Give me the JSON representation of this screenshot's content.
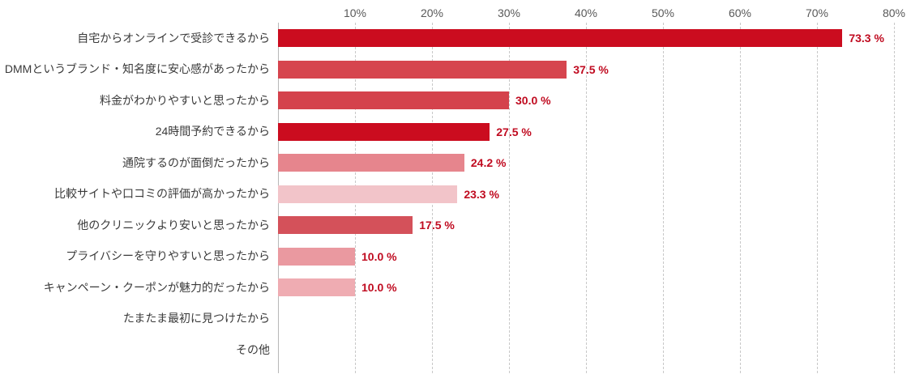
{
  "chart_data": {
    "type": "bar",
    "orientation": "horizontal",
    "title": "",
    "xlabel": "",
    "ylabel": "",
    "xlim": [
      0,
      80
    ],
    "grid": "vertical-dashed",
    "x_ticks": [
      "10%",
      "20%",
      "30%",
      "40%",
      "50%",
      "60%",
      "70%",
      "80%"
    ],
    "categories": [
      "自宅からオンラインで受診できるから",
      "DMMというブランド・知名度に安心感があったから",
      "料金がわかりやすいと思ったから",
      "24時間予約できるから",
      "通院するのが面倒だったから",
      "比較サイトや口コミの評価が高かったから",
      "他のクリニックより安いと思ったから",
      "プライバシーを守りやすいと思ったから",
      "キャンペーン・クーポンが魅力的だったから",
      "たまたま最初に見つけたから",
      "その他"
    ],
    "values": [
      73.3,
      37.5,
      30.0,
      27.5,
      24.2,
      23.3,
      17.5,
      10.0,
      10.0,
      null,
      null
    ],
    "value_labels": [
      "73.3 %",
      "37.5 %",
      "30.0 %",
      "27.5 %",
      "24.2 %",
      "23.3 %",
      "17.5 %",
      "10.0 %",
      "10.0 %",
      "",
      ""
    ],
    "bar_colors": [
      "#cb0c1f",
      "#d6454e",
      "#d4424c",
      "#cb0c1f",
      "#e6858d",
      "#f2c4c9",
      "#d4515a",
      "#ea99a0",
      "#efacb2",
      "",
      ""
    ],
    "value_label_color": "#c00b20",
    "tick_color": "#595959",
    "category_color": "#3a3a3a",
    "gridline_color": "#c8c8c8"
  }
}
